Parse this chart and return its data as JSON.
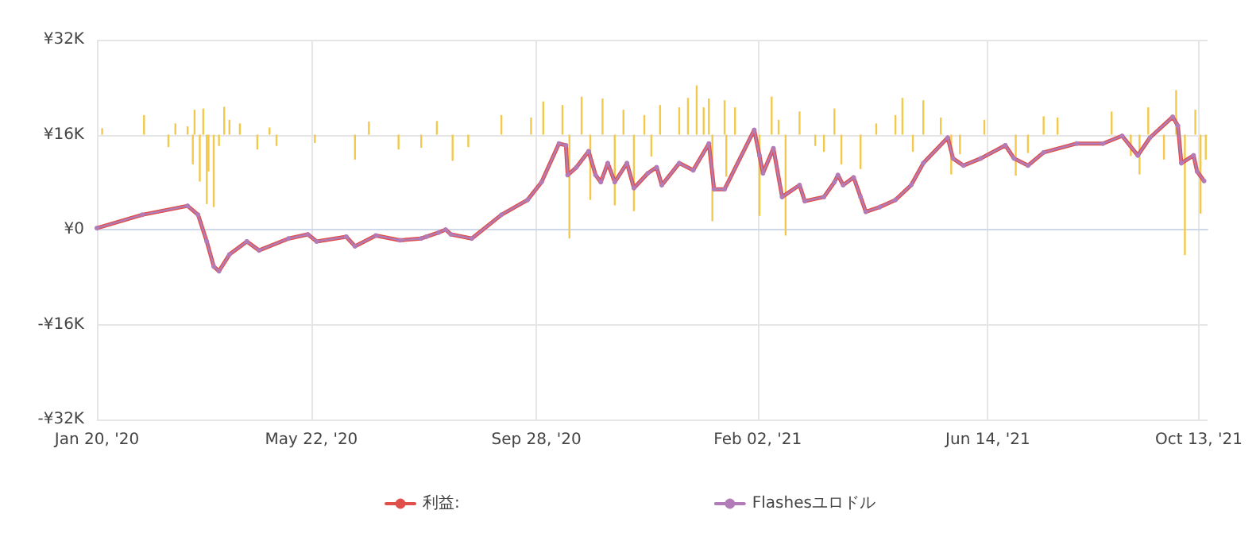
{
  "chart_data": {
    "type": "line",
    "legend": "bottom",
    "grid": true,
    "marker": "circle",
    "line_style": "solid",
    "xlim": [
      "2020-01-20",
      "2021-10-18"
    ],
    "xticks": [
      {
        "value": "2020-01-20",
        "label": "Jan 20, '20"
      },
      {
        "value": "2020-05-22",
        "label": "May 22, '20"
      },
      {
        "value": "2020-09-28",
        "label": "Sep 28, '20"
      },
      {
        "value": "2021-02-02",
        "label": "Feb 02, '21"
      },
      {
        "value": "2021-06-14",
        "label": "Jun 14, '21"
      },
      {
        "value": "2021-10-13",
        "label": "Oct 13, '21"
      }
    ],
    "ylim": [
      -32000,
      32000
    ],
    "yticks": [
      {
        "value": -32000,
        "label": "-¥32K"
      },
      {
        "value": -16000,
        "label": "-¥16K"
      },
      {
        "value": 0,
        "label": "¥0"
      },
      {
        "value": 16000,
        "label": "¥16K"
      },
      {
        "value": 32000,
        "label": "¥32K"
      }
    ],
    "x": [
      "2020-01-20",
      "2020-02-15",
      "2020-03-12",
      "2020-03-18",
      "2020-03-23",
      "2020-03-27",
      "2020-03-30",
      "2020-04-05",
      "2020-04-15",
      "2020-04-22",
      "2020-05-09",
      "2020-05-20",
      "2020-05-25",
      "2020-06-11",
      "2020-06-16",
      "2020-06-28",
      "2020-07-12",
      "2020-07-24",
      "2020-07-27",
      "2020-08-03",
      "2020-08-07",
      "2020-08-10",
      "2020-08-22",
      "2020-09-08",
      "2020-09-23",
      "2020-10-01",
      "2020-10-11",
      "2020-10-15",
      "2020-10-16",
      "2020-10-21",
      "2020-10-28",
      "2020-11-01",
      "2020-11-04",
      "2020-11-08",
      "2020-11-12",
      "2020-11-19",
      "2020-11-23",
      "2020-12-01",
      "2020-12-06",
      "2020-12-09",
      "2020-12-19",
      "2020-12-27",
      "2021-01-05",
      "2021-01-08",
      "2021-01-14",
      "2021-01-31",
      "2021-02-03",
      "2021-02-05",
      "2021-02-11",
      "2021-02-16",
      "2021-02-26",
      "2021-03-01",
      "2021-03-12",
      "2021-03-18",
      "2021-03-20",
      "2021-03-23",
      "2021-03-29",
      "2021-04-02",
      "2021-04-05",
      "2021-04-13",
      "2021-04-22",
      "2021-05-01",
      "2021-05-08",
      "2021-05-22",
      "2021-05-25",
      "2021-05-31",
      "2021-06-10",
      "2021-06-24",
      "2021-06-29",
      "2021-07-07",
      "2021-07-16",
      "2021-08-04",
      "2021-08-19",
      "2021-08-30",
      "2021-09-08",
      "2021-09-15",
      "2021-09-28",
      "2021-10-01",
      "2021-10-03",
      "2021-10-10",
      "2021-10-12",
      "2021-10-16"
    ],
    "series": [
      {
        "type": "bar",
        "color": "#f2c94c",
        "x": [
          "2020-01-23",
          "2020-02-16",
          "2020-03-01",
          "2020-03-05",
          "2020-03-12",
          "2020-03-15",
          "2020-03-16",
          "2020-03-19",
          "2020-03-21",
          "2020-03-23",
          "2020-03-24",
          "2020-03-27",
          "2020-03-30",
          "2020-04-02",
          "2020-04-05",
          "2020-04-11",
          "2020-04-21",
          "2020-04-28",
          "2020-05-02",
          "2020-05-24",
          "2020-06-16",
          "2020-06-24",
          "2020-07-11",
          "2020-07-24",
          "2020-08-02",
          "2020-08-11",
          "2020-08-20",
          "2020-09-08",
          "2020-09-25",
          "2020-10-02",
          "2020-10-13",
          "2020-10-17",
          "2020-10-24",
          "2020-10-29",
          "2020-11-05",
          "2020-11-12",
          "2020-11-17",
          "2020-11-23",
          "2020-11-29",
          "2020-12-03",
          "2020-12-08",
          "2020-12-19",
          "2020-12-24",
          "2020-12-29",
          "2021-01-02",
          "2021-01-05",
          "2021-01-07",
          "2021-01-14",
          "2021-01-15",
          "2021-01-20",
          "2021-02-03",
          "2021-02-10",
          "2021-02-14",
          "2021-02-18",
          "2021-02-26",
          "2021-03-07",
          "2021-03-12",
          "2021-03-18",
          "2021-03-22",
          "2021-04-02",
          "2021-04-11",
          "2021-04-22",
          "2021-04-26",
          "2021-05-02",
          "2021-05-08",
          "2021-05-18",
          "2021-05-24",
          "2021-05-29",
          "2021-06-12",
          "2021-06-30",
          "2021-07-07",
          "2021-07-16",
          "2021-07-24",
          "2021-08-24",
          "2021-09-04",
          "2021-09-09",
          "2021-09-14",
          "2021-09-23",
          "2021-09-30",
          "2021-10-05",
          "2021-10-11",
          "2021-10-14",
          "2021-10-17"
        ],
        "values": [
          1100,
          3300,
          -2100,
          1900,
          1400,
          -5000,
          4200,
          -7900,
          4400,
          -11700,
          -6200,
          -12200,
          -1900,
          4700,
          2500,
          1900,
          -2500,
          1200,
          -1900,
          -1400,
          -4200,
          2200,
          -2500,
          -2200,
          2300,
          -4400,
          -2100,
          3300,
          2900,
          5600,
          5000,
          -17500,
          6400,
          -11000,
          6100,
          -11900,
          4200,
          -12900,
          3300,
          -3700,
          5000,
          4600,
          6200,
          8300,
          4600,
          6100,
          -14600,
          5800,
          -7100,
          4600,
          -13700,
          6400,
          2500,
          -17000,
          3900,
          -1900,
          -2900,
          4400,
          -5000,
          -5800,
          1900,
          3300,
          6200,
          -2900,
          5800,
          2900,
          -6700,
          -3300,
          2500,
          -6900,
          -3100,
          3100,
          2900,
          3900,
          -3600,
          -6700,
          4600,
          -4200,
          7500,
          -20300,
          4200,
          -13300,
          -4200
        ],
        "base": [
          16000,
          16000,
          16000,
          16000,
          16000,
          16000,
          16000,
          16000,
          16000,
          16000,
          16000,
          16000,
          16000,
          16000,
          16000,
          16000,
          16000,
          16000,
          16000,
          16000,
          16000,
          16000,
          16000,
          16000,
          16000,
          16000,
          16000,
          16000,
          16000,
          16000,
          16000,
          16000,
          16000,
          16000,
          16000,
          16000,
          16000,
          16000,
          16000,
          16000,
          16000,
          16000,
          16000,
          16000,
          16000,
          16000,
          16000,
          16000,
          16000,
          16000,
          16000,
          16000,
          16000,
          16000,
          16000,
          16000,
          16000,
          16000,
          16000,
          16000,
          16000,
          16000,
          16000,
          16000,
          16000,
          16000,
          16000,
          16000,
          16000,
          16000,
          16000,
          16000,
          16000,
          16000,
          16000,
          16000,
          16000,
          16000,
          16000,
          16000,
          16000,
          16000,
          16000
        ]
      },
      {
        "name": "利益:",
        "color": "#e0504b",
        "marker": "none",
        "values": [
          250,
          2500,
          4000,
          2500,
          -2000,
          -6200,
          -7000,
          -4200,
          -2000,
          -3500,
          -1500,
          -800,
          -2000,
          -1200,
          -2800,
          -1000,
          -1800,
          -1500,
          -1200,
          -500,
          0,
          -800,
          -1500,
          2500,
          5000,
          8000,
          14500,
          14200,
          9200,
          10500,
          13200,
          9200,
          8000,
          11200,
          8000,
          11200,
          7000,
          9500,
          10500,
          7500,
          11200,
          10000,
          14500,
          6800,
          6800,
          16800,
          12500,
          9500,
          13700,
          5500,
          7500,
          4800,
          5500,
          8000,
          9200,
          7500,
          8800,
          5500,
          3000,
          3800,
          5000,
          7500,
          11200,
          15500,
          12000,
          10800,
          12000,
          14200,
          12000,
          10800,
          13000,
          14500,
          14500,
          15800,
          12500,
          15500,
          19000,
          17500,
          11200,
          12500,
          9800,
          8200
        ]
      },
      {
        "name": "Flashesユロドル",
        "color": "#b27cb8",
        "values": [
          250,
          2500,
          4000,
          2500,
          -2000,
          -6200,
          -7000,
          -4200,
          -2000,
          -3500,
          -1500,
          -800,
          -2000,
          -1200,
          -2800,
          -1000,
          -1800,
          -1500,
          -1200,
          -500,
          0,
          -800,
          -1500,
          2500,
          5000,
          8000,
          14500,
          14200,
          9200,
          10500,
          13200,
          9200,
          8000,
          11200,
          8000,
          11200,
          7000,
          9500,
          10500,
          7500,
          11200,
          10000,
          14500,
          6800,
          6800,
          16800,
          12500,
          9500,
          13700,
          5500,
          7500,
          4800,
          5500,
          8000,
          9200,
          7500,
          8800,
          5500,
          3000,
          3800,
          5000,
          7500,
          11200,
          15500,
          12000,
          10800,
          12000,
          14200,
          12000,
          10800,
          13000,
          14500,
          14500,
          15800,
          12500,
          15500,
          19000,
          17500,
          11200,
          12500,
          9800,
          8200
        ]
      }
    ]
  }
}
